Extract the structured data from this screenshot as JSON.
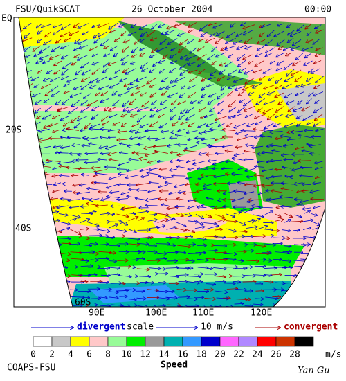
{
  "header": {
    "left": "FSU/QuikSCAT",
    "center": "26 October 2004",
    "right": "00:00"
  },
  "lat_labels": [
    "EQ",
    "20S",
    "40S",
    "60S"
  ],
  "lon_labels": [
    "90E",
    "100E",
    "110E",
    "120E"
  ],
  "legend": {
    "divergent": "divergent",
    "scale": "scale",
    "scale_value": "10 m/s",
    "convergent": "convergent"
  },
  "colorbar": {
    "ticks": [
      0,
      2,
      4,
      6,
      8,
      10,
      12,
      14,
      16,
      18,
      20,
      22,
      24,
      26,
      28
    ],
    "colors": [
      "#ffffff",
      "#c8c8c8",
      "#ffff00",
      "#ffc8c8",
      "#98fb98",
      "#00ee00",
      "#999999",
      "#00b0b0",
      "#3399ff",
      "#0000cc",
      "#ff66ff",
      "#b088ff",
      "#ff0000",
      "#cc3300",
      "#000000"
    ],
    "unit": "m/s",
    "label": "Speed"
  },
  "footer": {
    "left": "COAPS-FSU",
    "right": "Yan Gu"
  }
}
